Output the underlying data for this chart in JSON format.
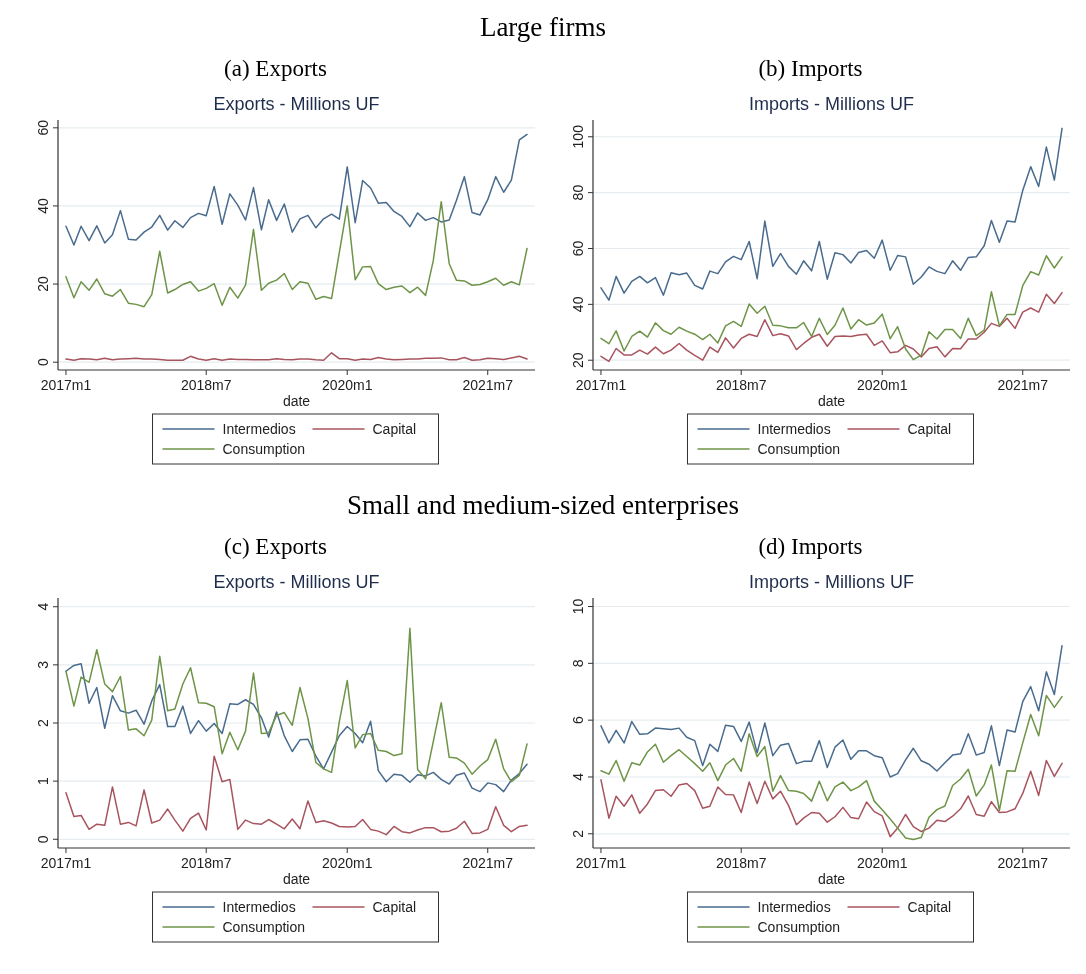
{
  "chart_data": [
    {
      "type": "line",
      "title": "Exports - Millions UF",
      "xlabel": "date",
      "annotations": [
        "Large firms",
        "(a) Exports"
      ],
      "grid": "y",
      "legend": "bottom",
      "marker": "none",
      "x": [
        "2017-01",
        "2017-02",
        "2017-03",
        "2017-04",
        "2017-05",
        "2017-06",
        "2017-07",
        "2017-08",
        "2017-09",
        "2017-10",
        "2017-11",
        "2017-12",
        "2018-01",
        "2018-02",
        "2018-03",
        "2018-04",
        "2018-05",
        "2018-06",
        "2018-07",
        "2018-08",
        "2018-09",
        "2018-10",
        "2018-11",
        "2018-12",
        "2019-01",
        "2019-02",
        "2019-03",
        "2019-04",
        "2019-05",
        "2019-06",
        "2019-07",
        "2019-08",
        "2019-09",
        "2019-10",
        "2019-11",
        "2019-12",
        "2020-01",
        "2020-02",
        "2020-03",
        "2020-04",
        "2020-05",
        "2020-06",
        "2020-07",
        "2020-08",
        "2020-09",
        "2020-10",
        "2020-11",
        "2020-12",
        "2021-01",
        "2021-02",
        "2021-03",
        "2021-04",
        "2021-05",
        "2021-06",
        "2021-07",
        "2021-08",
        "2021-09",
        "2021-10",
        "2021-11",
        "2021-12"
      ],
      "xlim": [
        "2016-12",
        "2022-01"
      ],
      "xticks": [
        {
          "value": "2017-01",
          "label": "2017m1"
        },
        {
          "value": "2018-07",
          "label": "2018m7"
        },
        {
          "value": "2020-01",
          "label": "2020m1"
        },
        {
          "value": "2021-07",
          "label": "2021m7"
        }
      ],
      "ylim": [
        -2,
        62
      ],
      "yticks": [
        0,
        20,
        40,
        60
      ],
      "series": [
        {
          "name": "Intermedios",
          "color": "#496b8d",
          "values": [
            34.8,
            30,
            34.8,
            31.1,
            34.9,
            30.5,
            32.6,
            38.8,
            31.5,
            31.3,
            33.3,
            34.6,
            37.6,
            33.8,
            36.2,
            34.5,
            37,
            38.1,
            37.5,
            45,
            35.3,
            43.1,
            40.2,
            36.4,
            44.7,
            33.9,
            41.6,
            36.3,
            40.5,
            33.3,
            36.7,
            37.6,
            34.4,
            36.7,
            37.9,
            36.6,
            50,
            35.7,
            46.5,
            44.6,
            40.7,
            40.9,
            38.6,
            37.3,
            34.7,
            38.2,
            36.3,
            37,
            35.9,
            36.4,
            41.4,
            47.5,
            38.3,
            37.7,
            41.6,
            47.5,
            43.5,
            46.6,
            56.9,
            58.3
          ]
        },
        {
          "name": "Capital",
          "color": "#a8545e",
          "values": [
            0.8,
            0.5,
            0.9,
            0.8,
            0.6,
            1.0,
            0.6,
            0.8,
            0.9,
            1.0,
            0.8,
            0.8,
            0.7,
            0.5,
            0.5,
            0.5,
            1.5,
            0.8,
            0.5,
            0.9,
            0.5,
            0.8,
            0.7,
            0.7,
            0.6,
            0.6,
            0.6,
            0.9,
            0.7,
            0.6,
            0.8,
            0.8,
            0.6,
            0.5,
            2.4,
            0.9,
            0.9,
            0.5,
            0.8,
            0.7,
            1.2,
            0.8,
            0.6,
            0.7,
            0.8,
            0.8,
            1.0,
            1.0,
            1.1,
            0.6,
            0.6,
            1.2,
            0.5,
            0.6,
            1.0,
            0.9,
            0.7,
            1.1,
            1.5,
            0.8
          ]
        },
        {
          "name": "Consumption",
          "color": "#6e9448",
          "values": [
            21.9,
            16.5,
            20.6,
            18.4,
            21.3,
            17.5,
            16.9,
            18.6,
            15.1,
            14.8,
            14.2,
            17.3,
            28.4,
            17.7,
            18.6,
            19.9,
            20.6,
            18.2,
            18.9,
            20.1,
            14.6,
            19.2,
            16.4,
            19.7,
            34,
            18.4,
            20.2,
            21,
            22.7,
            18.6,
            20.6,
            20.2,
            16.1,
            16.8,
            16.3,
            28,
            40,
            21.1,
            24.4,
            24.5,
            20.1,
            18.6,
            19.2,
            19.5,
            17.8,
            19.2,
            17.1,
            26,
            41.1,
            25.2,
            21,
            20.8,
            19.7,
            19.9,
            20.6,
            21.5,
            19.7,
            20.6,
            19.8,
            29.1
          ]
        }
      ]
    },
    {
      "type": "line",
      "title": "Imports - Millions UF",
      "xlabel": "date",
      "annotations": [
        "(b) Imports"
      ],
      "grid": "y",
      "legend": "bottom",
      "marker": "none",
      "x": [
        "2017-01",
        "2017-02",
        "2017-03",
        "2017-04",
        "2017-05",
        "2017-06",
        "2017-07",
        "2017-08",
        "2017-09",
        "2017-10",
        "2017-11",
        "2017-12",
        "2018-01",
        "2018-02",
        "2018-03",
        "2018-04",
        "2018-05",
        "2018-06",
        "2018-07",
        "2018-08",
        "2018-09",
        "2018-10",
        "2018-11",
        "2018-12",
        "2019-01",
        "2019-02",
        "2019-03",
        "2019-04",
        "2019-05",
        "2019-06",
        "2019-07",
        "2019-08",
        "2019-09",
        "2019-10",
        "2019-11",
        "2019-12",
        "2020-01",
        "2020-02",
        "2020-03",
        "2020-04",
        "2020-05",
        "2020-06",
        "2020-07",
        "2020-08",
        "2020-09",
        "2020-10",
        "2020-11",
        "2020-12",
        "2021-01",
        "2021-02",
        "2021-03",
        "2021-04",
        "2021-05",
        "2021-06",
        "2021-07",
        "2021-08",
        "2021-09",
        "2021-10",
        "2021-11",
        "2021-12"
      ],
      "xlim": [
        "2016-12",
        "2022-01"
      ],
      "xticks": [
        {
          "value": "2017-01",
          "label": "2017m1"
        },
        {
          "value": "2018-07",
          "label": "2018m7"
        },
        {
          "value": "2020-01",
          "label": "2020m1"
        },
        {
          "value": "2021-07",
          "label": "2021m7"
        }
      ],
      "ylim": [
        16.5,
        106
      ],
      "yticks": [
        20,
        40,
        60,
        80,
        100
      ],
      "series": [
        {
          "name": "Intermedios",
          "color": "#496b8d",
          "values": [
            45.9,
            41.5,
            50,
            44,
            48.2,
            50,
            47.7,
            49.6,
            43.3,
            51.3,
            50.6,
            51.2,
            46.8,
            45.5,
            51.9,
            51,
            55.2,
            57.2,
            56,
            62.5,
            49.2,
            69.8,
            53.6,
            58.2,
            53.6,
            50.8,
            55.6,
            52,
            62.5,
            49,
            58.5,
            57.8,
            54.8,
            58.6,
            59.3,
            56.5,
            63,
            52.2,
            57.5,
            57,
            47.2,
            49.8,
            53.4,
            51.8,
            51,
            55.6,
            52.2,
            56.8,
            57,
            61,
            70,
            62.2,
            69.8,
            69.5,
            80.8,
            89.3,
            82.2,
            96.3,
            84.5,
            103
          ]
        },
        {
          "name": "Capital",
          "color": "#a8545e",
          "values": [
            21.4,
            19.6,
            24.2,
            21.9,
            21.9,
            23.6,
            22.2,
            24.7,
            22.3,
            23.6,
            26,
            23.6,
            21.7,
            20,
            24.7,
            22.8,
            28,
            24.4,
            27.8,
            29.3,
            28.5,
            34.5,
            28.8,
            29.5,
            28.7,
            23.8,
            26,
            28.2,
            29.3,
            25,
            28.5,
            28.7,
            28.5,
            29,
            29.3,
            25.3,
            26.9,
            22.7,
            23,
            25.3,
            24,
            21.2,
            24.2,
            24.8,
            21.2,
            24.2,
            24.1,
            27.6,
            27.6,
            30,
            33.2,
            32.1,
            35,
            31.4,
            37.2,
            38.7,
            37.2,
            43.6,
            40.3,
            44.2
          ]
        },
        {
          "name": "Consumption",
          "color": "#6e9448",
          "values": [
            27.8,
            25.9,
            30.5,
            23.3,
            28.5,
            30.4,
            28.3,
            33.4,
            30.6,
            29.3,
            31.8,
            30.4,
            29.3,
            27.4,
            29.3,
            26.2,
            32.3,
            33.9,
            32.1,
            40.1,
            36.8,
            39.3,
            32.5,
            32.3,
            31.6,
            31.6,
            33.5,
            28.5,
            35,
            29.2,
            32.5,
            38.7,
            31.2,
            34.5,
            32.6,
            33.3,
            36.5,
            27.7,
            32,
            24,
            20.2,
            21.8,
            30.2,
            27.6,
            31,
            31,
            27.8,
            35,
            28.8,
            30.8,
            44.5,
            32.3,
            36.4,
            36.4,
            46.7,
            51.7,
            50.5,
            57.4,
            53,
            57
          ]
        }
      ]
    },
    {
      "type": "line",
      "title": "Exports - Millions UF",
      "xlabel": "date",
      "annotations": [
        "Small and medium-sized enterprises",
        "(c) Exports"
      ],
      "grid": "y",
      "legend": "bottom",
      "marker": "none",
      "x": [
        "2017-01",
        "2017-02",
        "2017-03",
        "2017-04",
        "2017-05",
        "2017-06",
        "2017-07",
        "2017-08",
        "2017-09",
        "2017-10",
        "2017-11",
        "2017-12",
        "2018-01",
        "2018-02",
        "2018-03",
        "2018-04",
        "2018-05",
        "2018-06",
        "2018-07",
        "2018-08",
        "2018-09",
        "2018-10",
        "2018-11",
        "2018-12",
        "2019-01",
        "2019-02",
        "2019-03",
        "2019-04",
        "2019-05",
        "2019-06",
        "2019-07",
        "2019-08",
        "2019-09",
        "2019-10",
        "2019-11",
        "2019-12",
        "2020-01",
        "2020-02",
        "2020-03",
        "2020-04",
        "2020-05",
        "2020-06",
        "2020-07",
        "2020-08",
        "2020-09",
        "2020-10",
        "2020-11",
        "2020-12",
        "2021-01",
        "2021-02",
        "2021-03",
        "2021-04",
        "2021-05",
        "2021-06",
        "2021-07",
        "2021-08",
        "2021-09",
        "2021-10",
        "2021-11",
        "2021-12"
      ],
      "xlim": [
        "2016-12",
        "2022-01"
      ],
      "xticks": [
        {
          "value": "2017-01",
          "label": "2017m1"
        },
        {
          "value": "2018-07",
          "label": "2018m7"
        },
        {
          "value": "2020-01",
          "label": "2020m1"
        },
        {
          "value": "2021-07",
          "label": "2021m7"
        }
      ],
      "ylim": [
        -0.15,
        4.15
      ],
      "yticks": [
        0,
        1,
        2,
        3,
        4
      ],
      "series": [
        {
          "name": "Intermedios",
          "color": "#496b8d",
          "values": [
            2.89,
            2.99,
            3.02,
            2.34,
            2.61,
            1.91,
            2.47,
            2.21,
            2.17,
            2.22,
            1.98,
            2.38,
            2.66,
            1.94,
            1.94,
            2.29,
            1.82,
            2.04,
            1.86,
            1.99,
            1.82,
            2.33,
            2.32,
            2.4,
            2.32,
            2.09,
            1.76,
            2.19,
            1.78,
            1.51,
            1.71,
            1.72,
            1.43,
            1.21,
            1.5,
            1.78,
            1.94,
            1.82,
            1.66,
            2.03,
            1.18,
            0.99,
            1.12,
            1.1,
            0.98,
            1.11,
            1.09,
            1.15,
            1.03,
            0.95,
            1.1,
            1.14,
            0.88,
            0.82,
            0.97,
            0.94,
            0.82,
            1.02,
            1.13,
            1.29
          ]
        },
        {
          "name": "Capital",
          "color": "#a8545e",
          "values": [
            0.8,
            0.39,
            0.41,
            0.17,
            0.26,
            0.24,
            0.9,
            0.26,
            0.29,
            0.23,
            0.85,
            0.28,
            0.33,
            0.52,
            0.33,
            0.14,
            0.36,
            0.45,
            0.16,
            1.43,
            0.99,
            1.03,
            0.17,
            0.33,
            0.27,
            0.26,
            0.34,
            0.26,
            0.18,
            0.35,
            0.18,
            0.66,
            0.29,
            0.32,
            0.28,
            0.22,
            0.21,
            0.22,
            0.34,
            0.17,
            0.14,
            0.08,
            0.22,
            0.13,
            0.11,
            0.16,
            0.2,
            0.2,
            0.13,
            0.14,
            0.19,
            0.31,
            0.1,
            0.11,
            0.17,
            0.56,
            0.24,
            0.13,
            0.22,
            0.24
          ]
        },
        {
          "name": "Consumption",
          "color": "#6e9448",
          "values": [
            2.89,
            2.29,
            2.79,
            2.7,
            3.26,
            2.67,
            2.54,
            2.8,
            1.88,
            1.9,
            1.78,
            2.05,
            3.15,
            2.21,
            2.24,
            2.67,
            2.95,
            2.35,
            2.34,
            2.28,
            1.47,
            1.84,
            1.54,
            1.86,
            2.86,
            1.82,
            1.83,
            2.13,
            2.18,
            1.96,
            2.61,
            2.08,
            1.32,
            1.21,
            1.15,
            2.02,
            2.73,
            1.57,
            1.8,
            1.82,
            1.53,
            1.51,
            1.44,
            1.47,
            3.63,
            1.2,
            1.04,
            1.68,
            2.35,
            1.41,
            1.4,
            1.31,
            1.12,
            1.26,
            1.37,
            1.72,
            1.21,
            0.99,
            1.1,
            1.64
          ]
        }
      ]
    },
    {
      "type": "line",
      "title": "Imports - Millions UF",
      "xlabel": "date",
      "annotations": [
        "(d) Imports"
      ],
      "grid": "y",
      "legend": "bottom",
      "marker": "none",
      "x": [
        "2017-01",
        "2017-02",
        "2017-03",
        "2017-04",
        "2017-05",
        "2017-06",
        "2017-07",
        "2017-08",
        "2017-09",
        "2017-10",
        "2017-11",
        "2017-12",
        "2018-01",
        "2018-02",
        "2018-03",
        "2018-04",
        "2018-05",
        "2018-06",
        "2018-07",
        "2018-08",
        "2018-09",
        "2018-10",
        "2018-11",
        "2018-12",
        "2019-01",
        "2019-02",
        "2019-03",
        "2019-04",
        "2019-05",
        "2019-06",
        "2019-07",
        "2019-08",
        "2019-09",
        "2019-10",
        "2019-11",
        "2019-12",
        "2020-01",
        "2020-02",
        "2020-03",
        "2020-04",
        "2020-05",
        "2020-06",
        "2020-07",
        "2020-08",
        "2020-09",
        "2020-10",
        "2020-11",
        "2020-12",
        "2021-01",
        "2021-02",
        "2021-03",
        "2021-04",
        "2021-05",
        "2021-06",
        "2021-07",
        "2021-08",
        "2021-09",
        "2021-10",
        "2021-11",
        "2021-12"
      ],
      "xlim": [
        "2016-12",
        "2022-01"
      ],
      "xticks": [
        {
          "value": "2017-01",
          "label": "2017m1"
        },
        {
          "value": "2018-07",
          "label": "2018m7"
        },
        {
          "value": "2020-01",
          "label": "2020m1"
        },
        {
          "value": "2021-07",
          "label": "2021m7"
        }
      ],
      "ylim": [
        1.5,
        10.3
      ],
      "yticks": [
        2,
        4,
        6,
        8,
        10
      ],
      "series": [
        {
          "name": "Intermedios",
          "color": "#496b8d",
          "values": [
            5.8,
            5.2,
            5.64,
            5.2,
            5.95,
            5.5,
            5.52,
            5.72,
            5.7,
            5.67,
            5.72,
            5.4,
            5.28,
            4.4,
            5.15,
            4.9,
            5.82,
            5.78,
            5.25,
            5.93,
            4.85,
            5.9,
            4.75,
            5.12,
            5.18,
            4.47,
            4.55,
            4.55,
            5.28,
            4.33,
            5.05,
            5.3,
            4.62,
            4.92,
            4.92,
            4.75,
            4.68,
            4.0,
            4.12,
            4.6,
            5.01,
            4.57,
            4.45,
            4.21,
            4.5,
            4.77,
            4.82,
            5.52,
            4.77,
            4.86,
            5.8,
            4.4,
            5.65,
            5.58,
            6.65,
            7.18,
            6.33,
            7.7,
            6.9,
            8.62
          ]
        },
        {
          "name": "Capital",
          "color": "#a8545e",
          "values": [
            3.9,
            2.55,
            3.32,
            2.97,
            3.37,
            2.72,
            3.05,
            3.52,
            3.55,
            3.32,
            3.72,
            3.77,
            3.52,
            2.9,
            2.97,
            3.65,
            3.38,
            3.37,
            2.75,
            3.82,
            3.07,
            3.85,
            3.23,
            3.5,
            3.0,
            2.32,
            2.55,
            2.75,
            2.72,
            2.41,
            2.6,
            2.93,
            2.57,
            2.53,
            3.12,
            2.78,
            2.63,
            1.9,
            2.2,
            2.68,
            2.25,
            2.08,
            2.2,
            2.48,
            2.43,
            2.62,
            2.88,
            3.33,
            2.68,
            2.62,
            3.13,
            2.75,
            2.77,
            2.88,
            3.42,
            4.2,
            3.35,
            4.58,
            4.02,
            4.48
          ]
        },
        {
          "name": "Consumption",
          "color": "#6e9448",
          "values": [
            4.22,
            4.1,
            4.58,
            3.85,
            4.5,
            4.42,
            4.88,
            5.15,
            4.52,
            4.75,
            4.96,
            4.72,
            4.47,
            4.2,
            4.5,
            3.87,
            4.42,
            4.65,
            4.2,
            5.52,
            4.72,
            5.07,
            3.5,
            4.05,
            3.52,
            3.5,
            3.42,
            3.15,
            3.85,
            3.16,
            3.65,
            3.82,
            3.52,
            3.65,
            3.87,
            3.15,
            2.85,
            2.52,
            2.2,
            1.85,
            1.8,
            1.87,
            2.58,
            2.85,
            2.98,
            3.7,
            3.93,
            4.27,
            3.33,
            3.72,
            4.42,
            2.82,
            4.22,
            4.2,
            5.2,
            6.2,
            5.45,
            6.87,
            6.45,
            6.83
          ]
        }
      ]
    }
  ]
}
